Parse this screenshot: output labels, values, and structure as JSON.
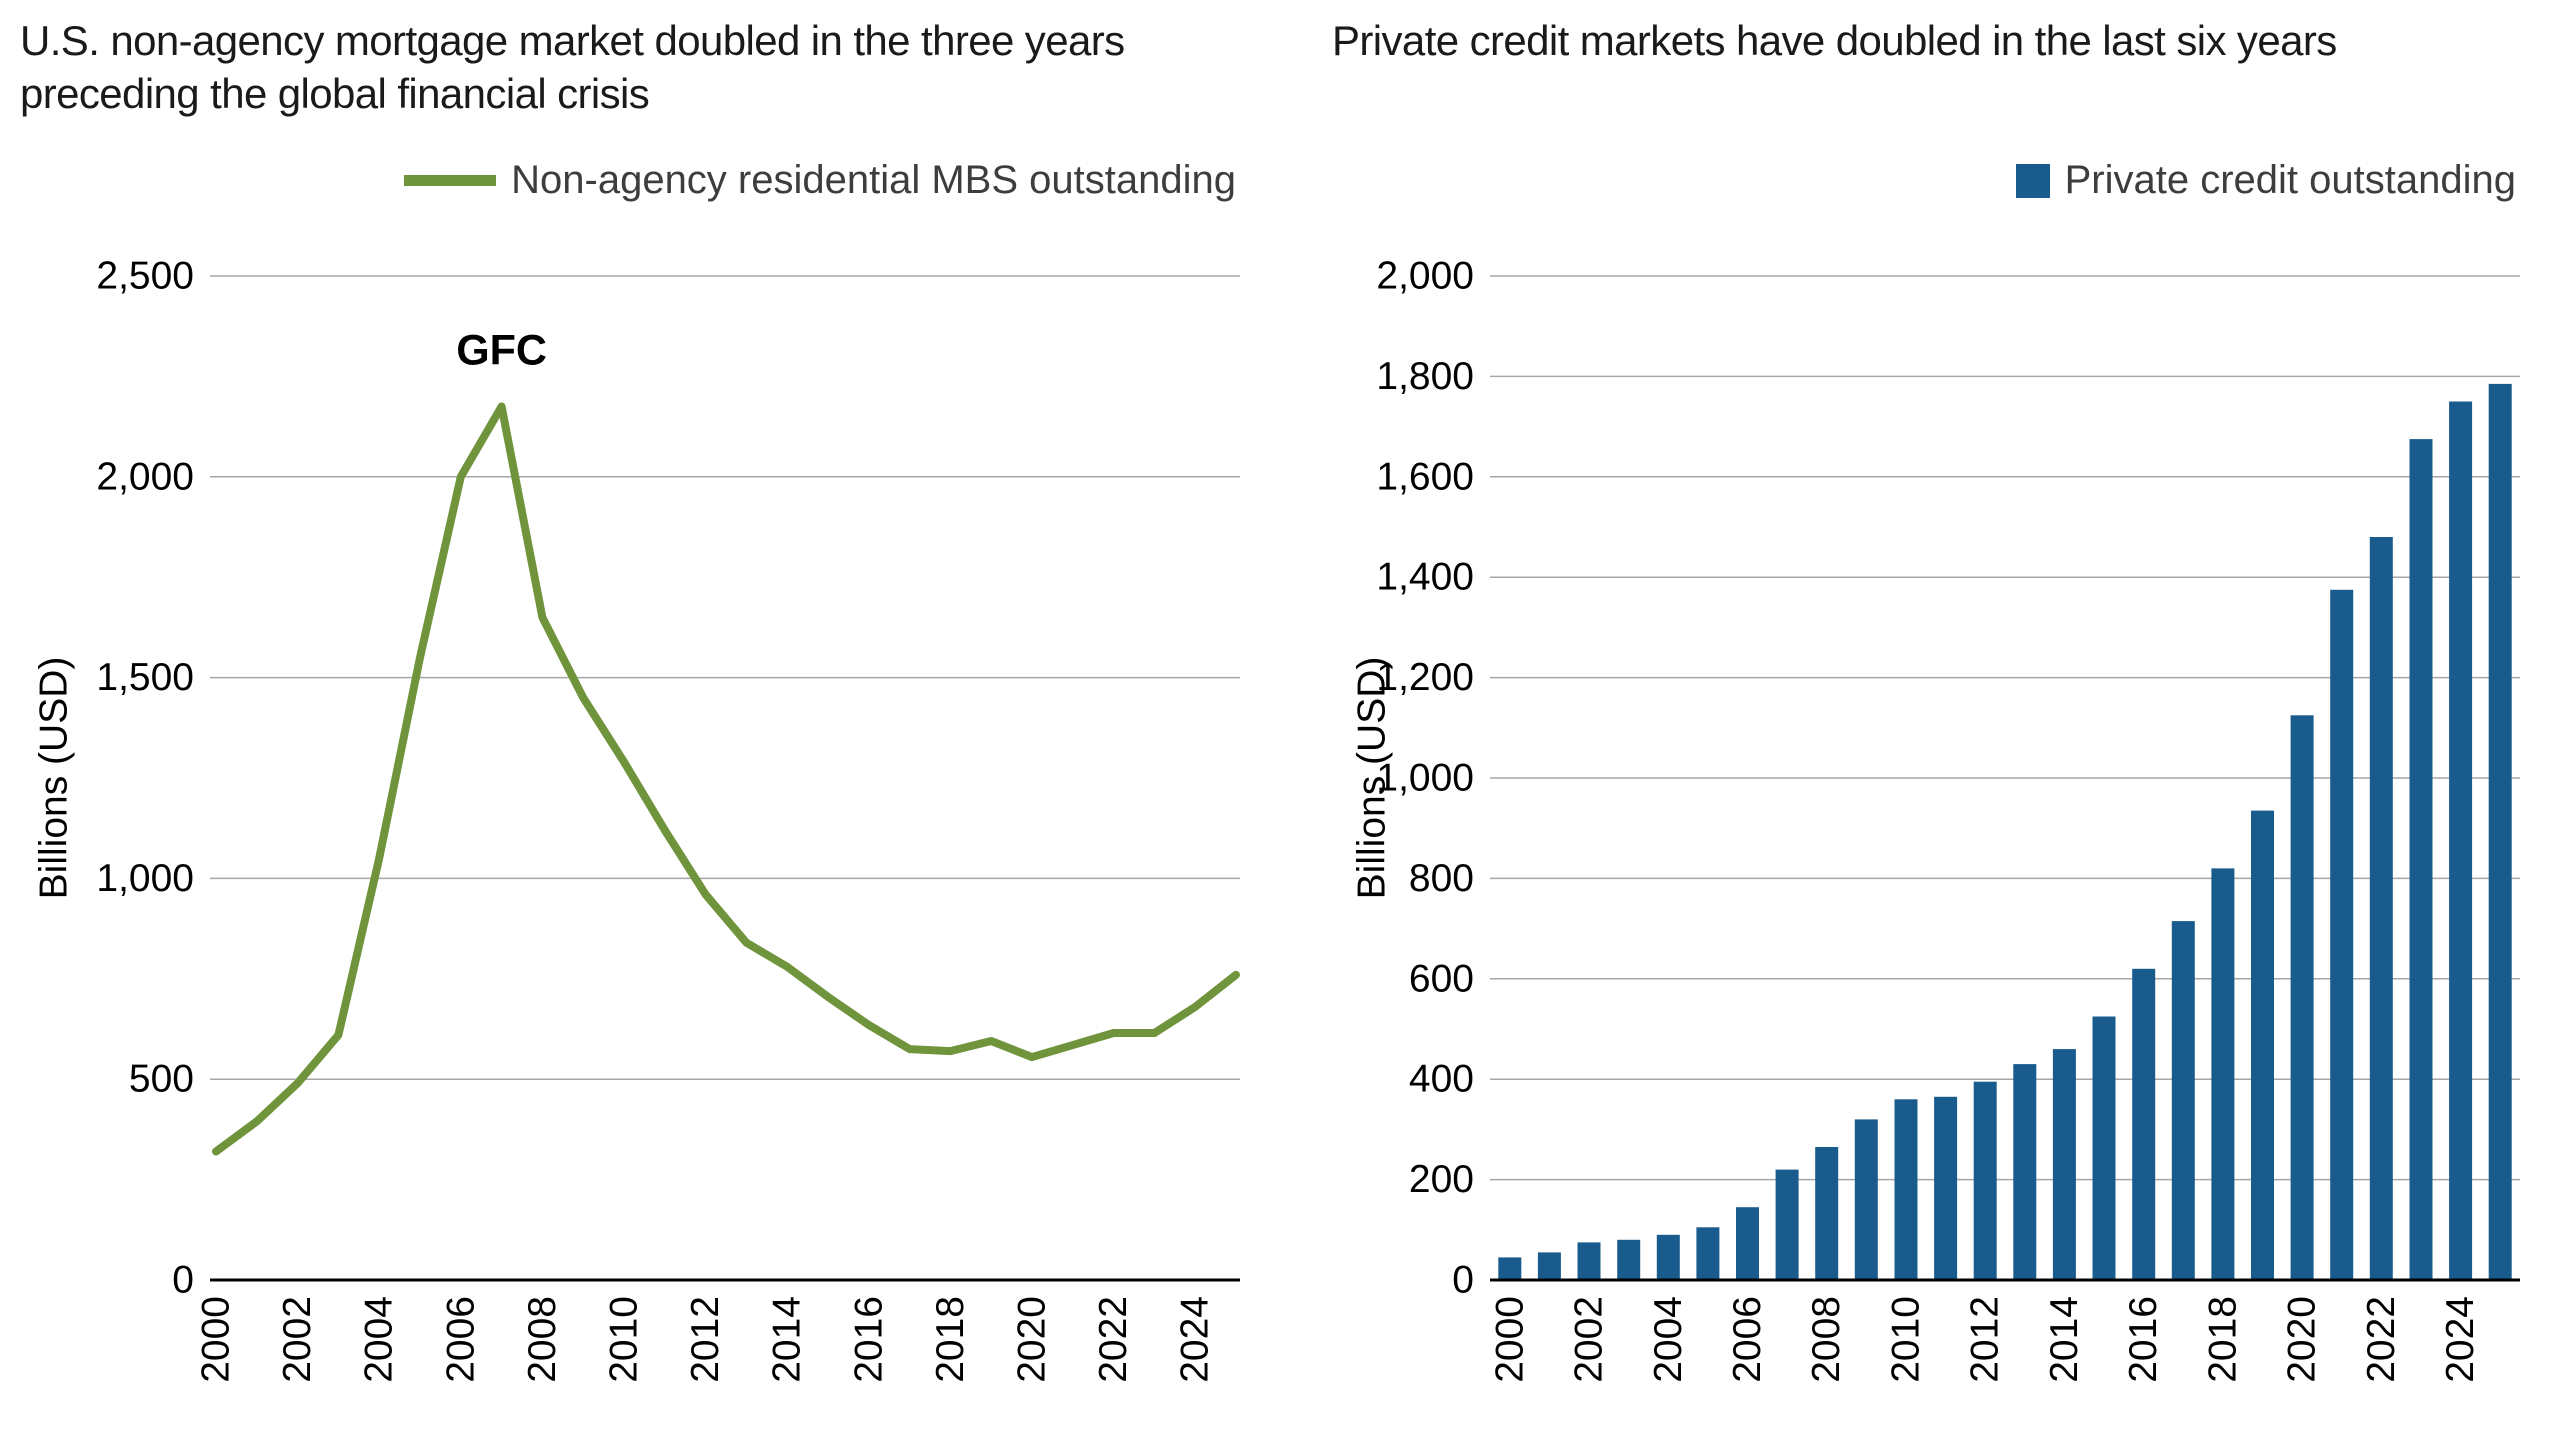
{
  "chart_data": [
    {
      "type": "line",
      "title": "U.S. non-agency mortgage market doubled in the three years\npreceding the global financial crisis",
      "legend": "Non-agency residential MBS outstanding",
      "ylabel": "Billions (USD)",
      "color": "#70943c",
      "ylim": [
        0,
        2500
      ],
      "ytick_step": 500,
      "grid": true,
      "legend_position": "top-right",
      "x": [
        2000,
        2001,
        2002,
        2003,
        2004,
        2005,
        2006,
        2007,
        2008,
        2009,
        2010,
        2011,
        2012,
        2013,
        2014,
        2015,
        2016,
        2017,
        2018,
        2019,
        2020,
        2021,
        2022,
        2023,
        2024,
        2025
      ],
      "values": [
        320,
        395,
        490,
        610,
        1050,
        1550,
        2000,
        2175,
        1650,
        1450,
        1290,
        1120,
        960,
        840,
        780,
        705,
        635,
        575,
        570,
        595,
        555,
        585,
        615,
        615,
        680,
        760
      ],
      "xticks": [
        2000,
        2002,
        2004,
        2006,
        2008,
        2010,
        2012,
        2014,
        2016,
        2018,
        2020,
        2022,
        2024
      ],
      "annotation": {
        "text": "GFC",
        "x": 2007,
        "y": 2175
      }
    },
    {
      "type": "bar",
      "title": "Private credit markets have doubled in the last six years",
      "legend": "Private credit outstanding",
      "ylabel": "Billions (USD)",
      "color": "#1a5b8e",
      "ylim": [
        0,
        2000
      ],
      "ytick_step": 200,
      "grid": true,
      "legend_position": "top-right",
      "x": [
        2000,
        2001,
        2002,
        2003,
        2004,
        2005,
        2006,
        2007,
        2008,
        2009,
        2010,
        2011,
        2012,
        2013,
        2014,
        2015,
        2016,
        2017,
        2018,
        2019,
        2020,
        2021,
        2022,
        2023,
        2024,
        2025
      ],
      "values": [
        45,
        55,
        75,
        80,
        90,
        105,
        145,
        220,
        265,
        320,
        360,
        365,
        395,
        430,
        460,
        525,
        620,
        715,
        820,
        935,
        1125,
        1375,
        1480,
        1675,
        1750,
        1785
      ],
      "xticks": [
        2000,
        2002,
        2004,
        2006,
        2008,
        2010,
        2012,
        2014,
        2016,
        2018,
        2020,
        2022,
        2024
      ]
    }
  ]
}
